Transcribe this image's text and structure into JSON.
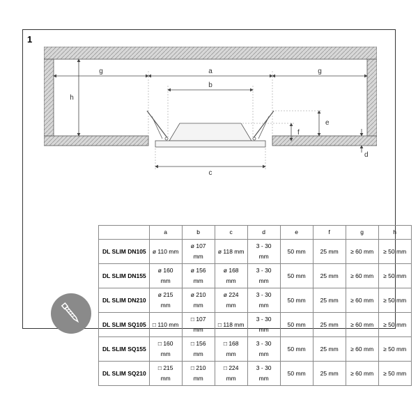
{
  "figure_label": "1",
  "diagram": {
    "labels": {
      "a": "a",
      "b": "b",
      "c": "c",
      "d": "d",
      "e": "e",
      "f": "f",
      "g1": "g",
      "g2": "g",
      "h": "h"
    },
    "colors": {
      "stroke": "#555555",
      "fill_hatch": "#cccccc",
      "fill_ceiling": "#d8d8d8",
      "fill_fixture": "#f4f4f4",
      "background": "#ffffff",
      "arrow": "#444444"
    },
    "font_size": 10
  },
  "table": {
    "columns": [
      "a",
      "b",
      "c",
      "d",
      "e",
      "f",
      "g",
      "h"
    ],
    "rows": [
      [
        "DL SLIM DN105",
        "ø 110 mm",
        "ø 107 mm",
        "ø 118 mm",
        "3 - 30 mm",
        "50 mm",
        "25 mm",
        "≥ 60 mm",
        "≥ 50 mm"
      ],
      [
        "DL SLIM DN155",
        "ø 160 mm",
        "ø 156 mm",
        "ø 168 mm",
        "3 - 30 mm",
        "50 mm",
        "25 mm",
        "≥ 60 mm",
        "≥ 50 mm"
      ],
      [
        "DL SLIM DN210",
        "ø 215 mm",
        "ø 210 mm",
        "ø 224 mm",
        "3 - 30 mm",
        "50 mm",
        "25 mm",
        "≥ 60 mm",
        "≥ 50 mm"
      ],
      [
        "DL SLIM SQ105",
        "□ 110 mm",
        "□ 107 mm",
        "□ 118 mm",
        "3 - 30 mm",
        "50 mm",
        "25 mm",
        "≥ 60 mm",
        "≥ 50 mm"
      ],
      [
        "DL SLIM SQ155",
        "□ 160 mm",
        "□ 156 mm",
        "□ 168 mm",
        "3 - 30 mm",
        "50 mm",
        "25 mm",
        "≥ 60 mm",
        "≥ 50 mm"
      ],
      [
        "DL SLIM SQ210",
        "□ 215 mm",
        "□ 210 mm",
        "□ 224 mm",
        "3 - 30 mm",
        "50 mm",
        "25 mm",
        "≥ 60 mm",
        "≥ 50 mm"
      ]
    ]
  },
  "icon": {
    "name": "screw-icon"
  }
}
